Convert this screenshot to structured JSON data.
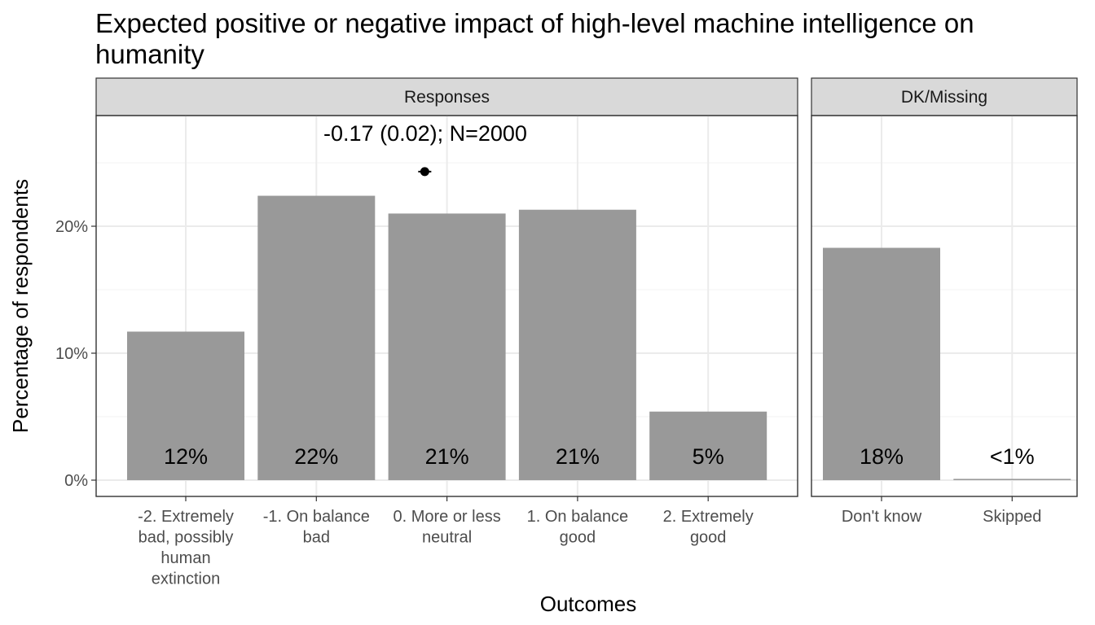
{
  "chart_data": {
    "type": "bar",
    "title": "Expected positive or negative impact of high-level machine intelligence on humanity",
    "title_lines": [
      "Expected positive or negative impact of high-level machine intelligence on",
      "humanity"
    ],
    "xlabel": "Outcomes",
    "ylabel": "Percentage of respondents",
    "ylim": [
      0,
      29
    ],
    "yticks": [
      0,
      10,
      20
    ],
    "ytick_labels": [
      "0%",
      "10%",
      "20%"
    ],
    "grid": true,
    "facets": [
      {
        "name": "Responses",
        "categories": [
          "-2. Extremely bad, possibly human extinction",
          "-1. On balance bad",
          "0. More or less neutral",
          "1. On balance good",
          "2. Extremely good"
        ],
        "category_lines": [
          [
            "-2. Extremely",
            "bad, possibly",
            "human",
            "extinction"
          ],
          [
            "-1. On balance",
            "bad"
          ],
          [
            "0. More or less",
            "neutral"
          ],
          [
            "1. On balance",
            "good"
          ],
          [
            "2. Extremely",
            "good"
          ]
        ],
        "values": [
          11.7,
          22.4,
          21.0,
          21.3,
          5.4
        ],
        "labels": [
          "12%",
          "22%",
          "21%",
          "21%",
          "5%"
        ],
        "mean_point": {
          "x": 1.83,
          "y": 24.3
        },
        "annotation": "-0.17 (0.02); N=2000"
      },
      {
        "name": "DK/Missing",
        "categories": [
          "Don't know",
          "Skipped"
        ],
        "category_lines": [
          [
            "Don't know"
          ],
          [
            "Skipped"
          ]
        ],
        "values": [
          18.3,
          0.1
        ],
        "labels": [
          "18%",
          "<1%"
        ]
      }
    ],
    "colors": {
      "bar": "#999999",
      "panel_border": "#333333",
      "strip_fill": "#d9d9d9",
      "grid_major": "#ebebeb",
      "grid_minor": "#f5f5f5"
    }
  }
}
